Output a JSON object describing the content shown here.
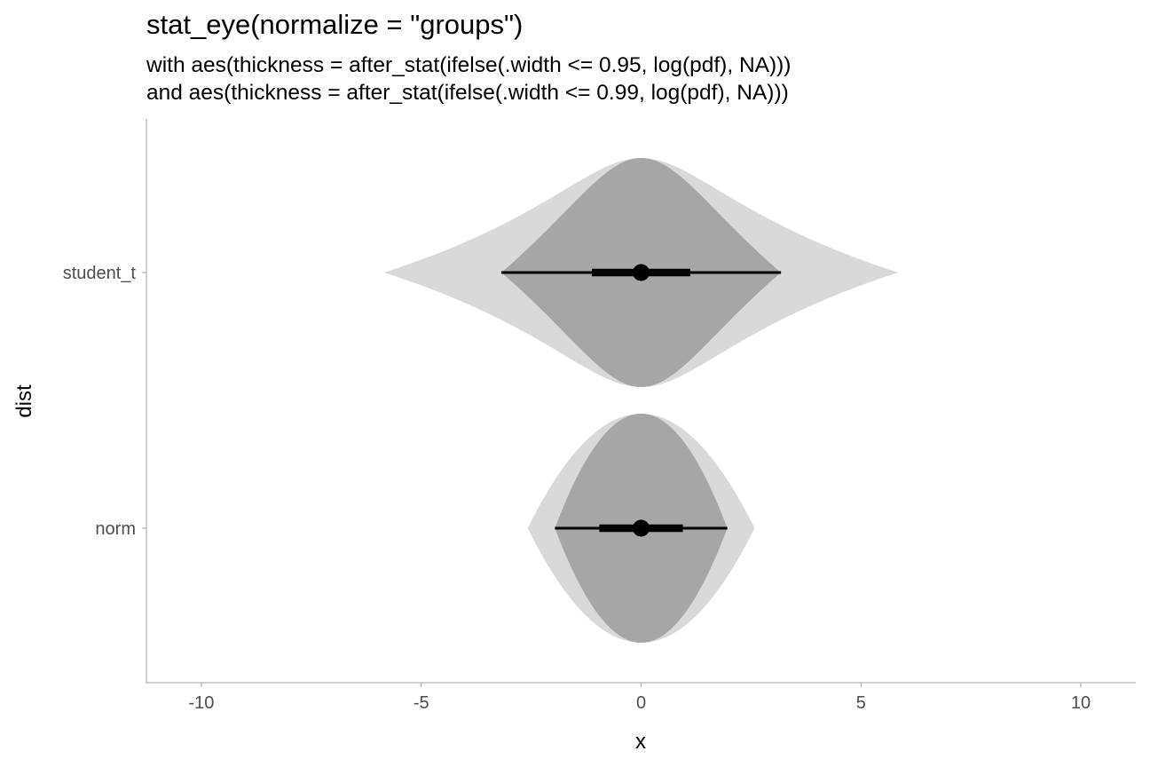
{
  "title": "stat_eye(normalize = \"groups\")",
  "subtitle_lines": [
    "with aes(thickness = after_stat(ifelse(.width <= 0.95, log(pdf), NA)))",
    "and aes(thickness = after_stat(ifelse(.width <= 0.99, log(pdf), NA)))"
  ],
  "chart_data": {
    "type": "eye",
    "title": "stat_eye(normalize = \"groups\")",
    "xlabel": "x",
    "ylabel": "dist",
    "xlim": [
      -11.25,
      11.25
    ],
    "x_ticks": [
      -10,
      -5,
      0,
      5,
      10
    ],
    "x_tick_labels": [
      "-10",
      "-5",
      "0",
      "5",
      "10"
    ],
    "categories": [
      "student_t",
      "norm"
    ],
    "grid": false,
    "colors": {
      "outer_fill": "#d9d9d9",
      "inner_fill": "#a6a6a6",
      "interval": "#000000",
      "axis": "#b3b3b3",
      "tick_text": "#4d4d4d"
    },
    "series": [
      {
        "name": "student_t",
        "median": 0,
        "outer_range": [
          -5.84,
          5.84
        ],
        "inner_range": [
          -3.18,
          3.18
        ],
        "interval_66": [
          -1.12,
          1.12
        ],
        "interval_95": [
          -3.18,
          3.18
        ]
      },
      {
        "name": "norm",
        "median": 0,
        "outer_range": [
          -2.58,
          2.58
        ],
        "inner_range": [
          -1.96,
          1.96
        ],
        "interval_66": [
          -0.95,
          0.95
        ],
        "interval_95": [
          -1.96,
          1.96
        ]
      }
    ]
  }
}
